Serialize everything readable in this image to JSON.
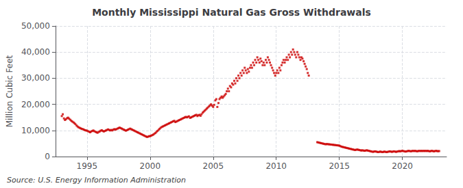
{
  "chart_data": {
    "type": "scatter",
    "title": "Monthly Mississippi Natural Gas Gross Withdrawals",
    "ylabel": "Million Cubic Feet",
    "source": "Source: U.S. Energy Information Administration",
    "color": "#cc0000",
    "marker": "square",
    "grid": true,
    "xlim": [
      1992.5,
      2023.5
    ],
    "xticks": [
      1995,
      2000,
      2005,
      2010,
      2015,
      2020
    ],
    "ylim": [
      0,
      50000
    ],
    "yticks": [
      0,
      {
        "value": 10000,
        "label": "10,000"
      },
      {
        "value": 20000,
        "label": "20,000"
      },
      {
        "value": 30000,
        "label": "30,000"
      },
      {
        "value": 40000,
        "label": "40,000"
      },
      {
        "value": 50000,
        "label": "50,000"
      }
    ],
    "x": [
      1993.0,
      1993.08,
      1993.17,
      1993.25,
      1993.33,
      1993.42,
      1993.5,
      1993.58,
      1993.67,
      1993.75,
      1993.83,
      1993.92,
      1994.0,
      1994.08,
      1994.17,
      1994.25,
      1994.33,
      1994.42,
      1994.5,
      1994.58,
      1994.67,
      1994.75,
      1994.83,
      1994.92,
      1995.0,
      1995.08,
      1995.17,
      1995.25,
      1995.33,
      1995.42,
      1995.5,
      1995.58,
      1995.67,
      1995.75,
      1995.83,
      1995.92,
      1996.0,
      1996.08,
      1996.17,
      1996.25,
      1996.33,
      1996.42,
      1996.5,
      1996.58,
      1996.67,
      1996.75,
      1996.83,
      1996.92,
      1997.0,
      1997.08,
      1997.17,
      1997.25,
      1997.33,
      1997.42,
      1997.5,
      1997.58,
      1997.67,
      1997.75,
      1997.83,
      1997.92,
      1998.0,
      1998.08,
      1998.17,
      1998.25,
      1998.33,
      1998.42,
      1998.5,
      1998.58,
      1998.67,
      1998.75,
      1998.83,
      1998.92,
      1999.0,
      1999.08,
      1999.17,
      1999.25,
      1999.33,
      1999.42,
      1999.5,
      1999.58,
      1999.67,
      1999.75,
      1999.83,
      1999.92,
      2000.0,
      2000.08,
      2000.17,
      2000.25,
      2000.33,
      2000.42,
      2000.5,
      2000.58,
      2000.67,
      2000.75,
      2000.83,
      2000.92,
      2001.0,
      2001.08,
      2001.17,
      2001.25,
      2001.33,
      2001.42,
      2001.5,
      2001.58,
      2001.67,
      2001.75,
      2001.83,
      2001.92,
      2002.0,
      2002.08,
      2002.17,
      2002.25,
      2002.33,
      2002.42,
      2002.5,
      2002.58,
      2002.67,
      2002.75,
      2002.83,
      2002.92,
      2003.0,
      2003.08,
      2003.17,
      2003.25,
      2003.33,
      2003.42,
      2003.5,
      2003.58,
      2003.67,
      2003.75,
      2003.83,
      2003.92,
      2004.0,
      2004.08,
      2004.17,
      2004.25,
      2004.33,
      2004.42,
      2004.5,
      2004.58,
      2004.67,
      2004.75,
      2004.83,
      2004.92,
      2005.0,
      2005.08,
      2005.17,
      2005.25,
      2005.33,
      2005.42,
      2005.5,
      2005.58,
      2005.67,
      2005.75,
      2005.83,
      2005.92,
      2006.0,
      2006.08,
      2006.17,
      2006.25,
      2006.33,
      2006.42,
      2006.5,
      2006.58,
      2006.67,
      2006.75,
      2006.83,
      2006.92,
      2007.0,
      2007.08,
      2007.17,
      2007.25,
      2007.33,
      2007.42,
      2007.5,
      2007.58,
      2007.67,
      2007.75,
      2007.83,
      2007.92,
      2008.0,
      2008.08,
      2008.17,
      2008.25,
      2008.33,
      2008.42,
      2008.5,
      2008.58,
      2008.67,
      2008.75,
      2008.83,
      2008.92,
      2009.0,
      2009.08,
      2009.17,
      2009.25,
      2009.33,
      2009.42,
      2009.5,
      2009.58,
      2009.67,
      2009.75,
      2009.83,
      2009.92,
      2010.0,
      2010.08,
      2010.17,
      2010.25,
      2010.33,
      2010.42,
      2010.5,
      2010.58,
      2010.67,
      2010.75,
      2010.83,
      2010.92,
      2011.0,
      2011.08,
      2011.17,
      2011.25,
      2011.33,
      2011.42,
      2011.5,
      2011.58,
      2011.67,
      2011.75,
      2011.83,
      2011.92,
      2012.0,
      2012.08,
      2012.17,
      2012.25,
      2012.33,
      2012.42,
      2012.5,
      2012.58,
      2013.25,
      2013.33,
      2013.42,
      2013.5,
      2013.58,
      2013.67,
      2013.75,
      2013.83,
      2013.92,
      2014.0,
      2014.08,
      2014.17,
      2014.25,
      2014.33,
      2014.42,
      2014.5,
      2014.58,
      2014.67,
      2014.75,
      2014.83,
      2014.92,
      2015.0,
      2015.08,
      2015.17,
      2015.25,
      2015.33,
      2015.42,
      2015.5,
      2015.58,
      2015.67,
      2015.75,
      2015.83,
      2015.92,
      2016.0,
      2016.08,
      2016.17,
      2016.25,
      2016.33,
      2016.42,
      2016.5,
      2016.58,
      2016.67,
      2016.75,
      2016.83,
      2016.92,
      2017.0,
      2017.08,
      2017.17,
      2017.25,
      2017.33,
      2017.42,
      2017.5,
      2017.58,
      2017.67,
      2017.75,
      2017.83,
      2017.92,
      2018.0,
      2018.08,
      2018.17,
      2018.25,
      2018.33,
      2018.42,
      2018.5,
      2018.58,
      2018.67,
      2018.75,
      2018.83,
      2018.92,
      2019.0,
      2019.08,
      2019.17,
      2019.25,
      2019.33,
      2019.42,
      2019.5,
      2019.58,
      2019.67,
      2019.75,
      2019.83,
      2019.92,
      2020.0,
      2020.08,
      2020.17,
      2020.25,
      2020.33,
      2020.42,
      2020.5,
      2020.58,
      2020.67,
      2020.75,
      2020.83,
      2020.92,
      2021.0,
      2021.08,
      2021.17,
      2021.25,
      2021.33,
      2021.42,
      2021.5,
      2021.58,
      2021.67,
      2021.75,
      2021.83,
      2021.92,
      2022.0,
      2022.08,
      2022.17,
      2022.25,
      2022.33,
      2022.42,
      2022.5,
      2022.58,
      2022.67,
      2022.75,
      2022.83,
      2022.92
    ],
    "values": [
      15500,
      16200,
      14600,
      14000,
      14300,
      14700,
      14900,
      14500,
      14100,
      13700,
      13400,
      13100,
      12800,
      12400,
      11900,
      11500,
      11200,
      11000,
      10800,
      10600,
      10500,
      10300,
      10100,
      10000,
      9900,
      9700,
      9500,
      9300,
      9600,
      9800,
      10000,
      9700,
      9500,
      9300,
      9100,
      9400,
      9600,
      9900,
      10100,
      9800,
      9600,
      9800,
      10000,
      10200,
      10400,
      10200,
      10000,
      10200,
      10000,
      10300,
      10500,
      10300,
      10500,
      10700,
      10900,
      11100,
      10900,
      10700,
      10500,
      10300,
      10100,
      9900,
      10100,
      10300,
      10500,
      10700,
      10500,
      10300,
      10100,
      9900,
      9700,
      9500,
      9300,
      9100,
      8900,
      8700,
      8500,
      8300,
      8100,
      7900,
      7700,
      7500,
      7600,
      7800,
      7800,
      8000,
      8200,
      8400,
      8700,
      9000,
      9400,
      9800,
      10200,
      10600,
      11000,
      11300,
      11500,
      11700,
      11900,
      12100,
      12300,
      12500,
      12700,
      12900,
      13100,
      13300,
      13500,
      13700,
      13200,
      13400,
      13600,
      13800,
      14000,
      14200,
      14400,
      14600,
      14800,
      15000,
      15200,
      15000,
      15200,
      15400,
      14800,
      15000,
      15200,
      15400,
      15600,
      15800,
      16000,
      15500,
      15800,
      16000,
      15600,
      16200,
      16800,
      17200,
      17600,
      18000,
      18400,
      18800,
      19200,
      19600,
      20000,
      19500,
      19000,
      19800,
      21500,
      22000,
      19000,
      20500,
      22000,
      22500,
      23000,
      22500,
      23000,
      23500,
      24000,
      25000,
      26000,
      25000,
      27000,
      26500,
      28000,
      27500,
      29000,
      28000,
      30000,
      29000,
      31000,
      30000,
      32000,
      31000,
      33000,
      32000,
      34000,
      33000,
      32000,
      33500,
      32500,
      34000,
      35000,
      34000,
      36000,
      35000,
      37000,
      36000,
      38000,
      37000,
      36000,
      37500,
      36500,
      35000,
      36000,
      35000,
      37000,
      36000,
      38000,
      37000,
      36000,
      35000,
      34000,
      33000,
      32000,
      31000,
      32000,
      33000,
      32000,
      34000,
      33000,
      35000,
      36000,
      37000,
      36000,
      37000,
      38000,
      37000,
      39000,
      38000,
      40000,
      39000,
      41000,
      40000,
      39000,
      38000,
      40000,
      39000,
      38000,
      37000,
      38000,
      37500,
      36500,
      35500,
      34500,
      33500,
      32000,
      31000,
      5500,
      5400,
      5300,
      5200,
      5100,
      5000,
      4900,
      4800,
      4700,
      4800,
      4750,
      4700,
      4650,
      4600,
      4550,
      4500,
      4450,
      4400,
      4350,
      4300,
      4250,
      4200,
      4000,
      3800,
      3700,
      3600,
      3500,
      3400,
      3300,
      3200,
      3100,
      3000,
      2900,
      2800,
      2700,
      2600,
      2500,
      2600,
      2700,
      2600,
      2500,
      2400,
      2300,
      2400,
      2300,
      2200,
      2300,
      2400,
      2300,
      2200,
      2100,
      2000,
      1900,
      1800,
      1900,
      2000,
      1900,
      1800,
      1700,
      1800,
      1900,
      1800,
      1700,
      1800,
      1900,
      1800,
      1700,
      1800,
      1900,
      2000,
      1900,
      1800,
      1900,
      2000,
      1900,
      1800,
      1900,
      2000,
      2100,
      2000,
      2100,
      2200,
      2100,
      2000,
      1900,
      2000,
      2100,
      2200,
      2100,
      2000,
      2100,
      2200,
      2100,
      2200,
      2100,
      2000,
      2100,
      2200,
      2100,
      2200,
      2100,
      2200,
      2100,
      2200,
      2100,
      2200,
      2100,
      2000,
      2100,
      2200,
      2100,
      2000,
      2100,
      2200,
      2100,
      2050,
      2100
    ]
  }
}
